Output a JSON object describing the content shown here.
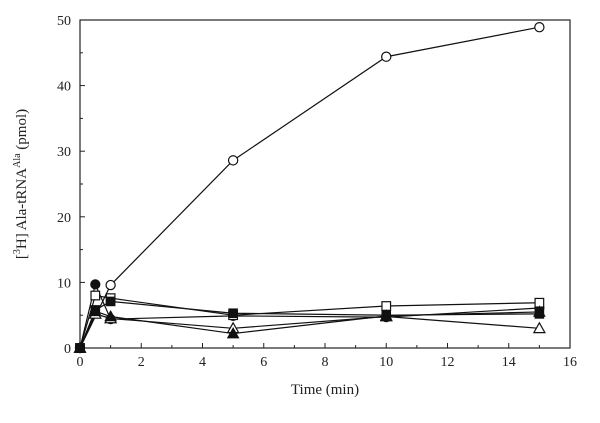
{
  "chart_data": {
    "type": "line",
    "xlabel": "Time (min)",
    "ylabel": {
      "open_bracket": "[",
      "isotope": "3",
      "mid": "H] Ala-tRNA",
      "superscript": "Ala",
      "unit": " (pmol)"
    },
    "xlim": [
      0,
      16
    ],
    "ylim": [
      0,
      50
    ],
    "x_ticks": [
      0,
      2,
      4,
      6,
      8,
      10,
      12,
      14,
      16
    ],
    "y_ticks": [
      0,
      10,
      20,
      30,
      40,
      50
    ],
    "x_tick_labels": [
      "0",
      "2",
      "4",
      "6",
      "8",
      "10",
      "12",
      "14",
      "16"
    ],
    "y_tick_labels": [
      "0",
      "10",
      "20",
      "30",
      "40",
      "50"
    ],
    "grid": false,
    "series": [
      {
        "marker": "open-circle",
        "x": [
          0,
          1,
          5,
          10,
          15
        ],
        "y": [
          0,
          9.6,
          28.6,
          44.4,
          48.9
        ]
      },
      {
        "marker": "filled-circle",
        "x": [
          0,
          0.5,
          1,
          5,
          10,
          15
        ],
        "y": [
          0,
          9.7,
          4.4,
          4.9,
          4.7,
          6.1
        ]
      },
      {
        "marker": "open-square",
        "x": [
          0,
          0.5,
          1,
          5,
          10,
          15
        ],
        "y": [
          0,
          8.0,
          7.6,
          5.0,
          6.4,
          6.9
        ]
      },
      {
        "marker": "filled-square",
        "x": [
          0,
          0.5,
          1,
          5,
          10,
          15
        ],
        "y": [
          0,
          5.8,
          7.1,
          5.3,
          5.0,
          5.2
        ]
      },
      {
        "marker": "open-triangle",
        "x": [
          0,
          0.5,
          1,
          5,
          10,
          15
        ],
        "y": [
          0,
          5.2,
          4.5,
          3.0,
          4.8,
          3.0
        ]
      },
      {
        "marker": "filled-triangle",
        "x": [
          0,
          0.5,
          1,
          5,
          10,
          15
        ],
        "y": [
          0,
          5.6,
          4.8,
          2.2,
          4.9,
          5.5
        ]
      }
    ]
  }
}
